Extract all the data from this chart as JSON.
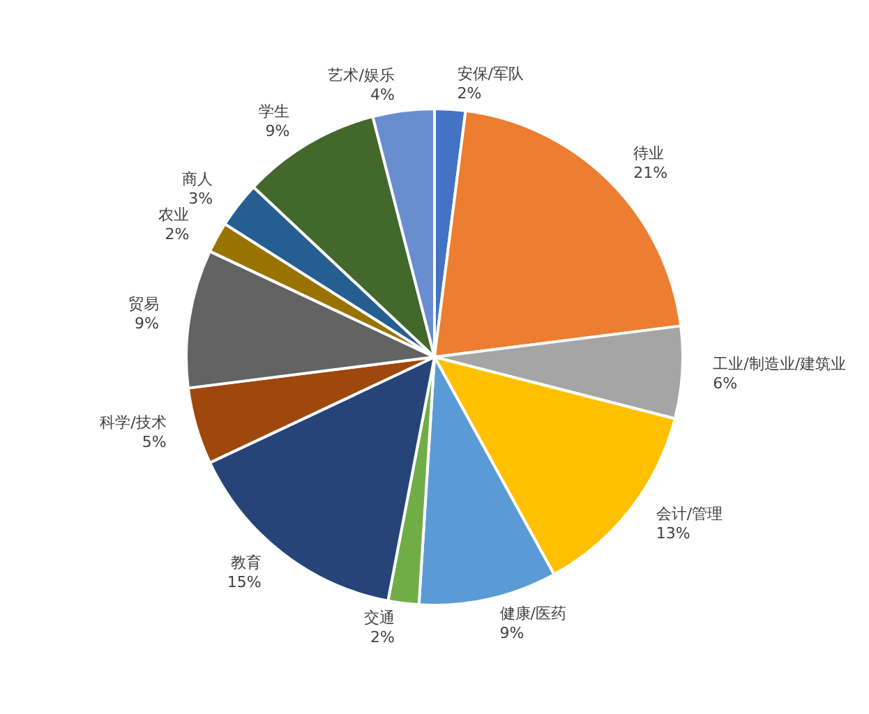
{
  "chart_data": {
    "type": "pie",
    "categories": [
      "安保/军队",
      "待业",
      "工业/制造业/建筑业",
      "会计/管理",
      "健康/医药",
      "交通",
      "教育",
      "科学/技术",
      "贸易",
      "农业",
      "商人",
      "学生",
      "艺术/娱乐"
    ],
    "values": [
      2,
      21,
      6,
      13,
      9,
      2,
      15,
      5,
      9,
      2,
      3,
      9,
      4
    ],
    "value_labels": [
      "2%",
      "21%",
      "6%",
      "13%",
      "9%",
      "2%",
      "15%",
      "5%",
      "9%",
      "2%",
      "3%",
      "9%",
      "4%"
    ],
    "colors": [
      "#4472c4",
      "#ed7d31",
      "#a5a5a5",
      "#ffc000",
      "#5b9bd5",
      "#70ad47",
      "#264478",
      "#9e480e",
      "#636363",
      "#997300",
      "#255e91",
      "#43682b",
      "#698ed0"
    ],
    "legend": false
  }
}
